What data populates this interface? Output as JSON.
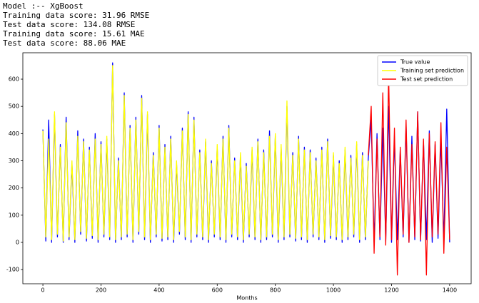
{
  "output_lines": [
    "Model :-- XgBoost",
    "Training data score: 31.96 RMSE",
    "Test data score: 134.08 RMSE",
    "Training data score: 15.61 MAE",
    "Test data score: 88.06 MAE"
  ],
  "chart_data": {
    "type": "line",
    "x_label": "Months",
    "legend": "upper right",
    "xlim": [
      -69,
      1474
    ],
    "ylim": [
      -152,
      697
    ],
    "xticks": [
      0,
      200,
      400,
      600,
      800,
      1000,
      1200,
      1400
    ],
    "yticks": [
      -100,
      0,
      100,
      200,
      300,
      400,
      500,
      600
    ],
    "series": [
      {
        "name": "True value",
        "color": "#0000ff",
        "x": [
          0,
          10,
          20,
          30,
          40,
          50,
          60,
          70,
          80,
          90,
          100,
          110,
          120,
          130,
          140,
          150,
          160,
          170,
          180,
          190,
          200,
          210,
          220,
          230,
          240,
          250,
          260,
          270,
          280,
          290,
          300,
          310,
          320,
          330,
          340,
          350,
          360,
          370,
          380,
          390,
          400,
          410,
          420,
          430,
          440,
          450,
          460,
          470,
          480,
          490,
          500,
          510,
          520,
          530,
          540,
          550,
          560,
          570,
          580,
          590,
          600,
          610,
          620,
          630,
          640,
          650,
          660,
          670,
          680,
          690,
          700,
          710,
          720,
          730,
          740,
          750,
          760,
          770,
          780,
          790,
          800,
          810,
          820,
          830,
          840,
          850,
          860,
          870,
          880,
          890,
          900,
          910,
          920,
          930,
          940,
          950,
          960,
          970,
          980,
          990,
          1000,
          1010,
          1020,
          1030,
          1040,
          1050,
          1060,
          1070,
          1080,
          1090,
          1100,
          1110,
          1120,
          1130,
          1140,
          1150,
          1160,
          1170,
          1180,
          1190,
          1200,
          1210,
          1220,
          1230,
          1240,
          1250,
          1260,
          1270,
          1280,
          1290,
          1300,
          1310,
          1320,
          1330,
          1340,
          1350,
          1360,
          1370,
          1380,
          1390,
          1400
        ],
        "values": [
          415,
          5,
          450,
          0,
          470,
          20,
          360,
          0,
          460,
          10,
          290,
          0,
          410,
          30,
          380,
          5,
          350,
          15,
          400,
          0,
          370,
          20,
          380,
          10,
          660,
          0,
          310,
          10,
          550,
          20,
          430,
          0,
          460,
          30,
          540,
          10,
          470,
          0,
          330,
          20,
          430,
          5,
          360,
          10,
          390,
          0,
          290,
          30,
          420,
          10,
          480,
          0,
          460,
          20,
          340,
          10,
          370,
          0,
          300,
          20,
          350,
          10,
          390,
          0,
          430,
          20,
          310,
          10,
          320,
          0,
          290,
          20,
          340,
          10,
          380,
          0,
          340,
          10,
          410,
          20,
          390,
          0,
          350,
          10,
          500,
          20,
          330,
          5,
          390,
          10,
          350,
          0,
          340,
          20,
          310,
          10,
          350,
          0,
          380,
          15,
          320,
          10,
          300,
          0,
          340,
          10,
          320,
          20,
          360,
          0,
          330,
          10,
          310,
          450,
          0,
          400,
          10,
          420,
          5,
          500,
          0,
          380,
          10,
          340,
          20,
          430,
          0,
          390,
          10,
          480,
          5,
          370,
          10,
          410,
          0,
          360,
          15,
          380,
          5,
          490,
          0
        ]
      },
      {
        "name": "Training set prediction",
        "color": "#ffff00",
        "x": [
          0,
          10,
          20,
          30,
          40,
          50,
          60,
          70,
          80,
          90,
          100,
          110,
          120,
          130,
          140,
          150,
          160,
          170,
          180,
          190,
          200,
          210,
          220,
          230,
          240,
          250,
          260,
          270,
          280,
          290,
          300,
          310,
          320,
          330,
          340,
          350,
          360,
          370,
          380,
          390,
          400,
          410,
          420,
          430,
          440,
          450,
          460,
          470,
          480,
          490,
          500,
          510,
          520,
          530,
          540,
          550,
          560,
          570,
          580,
          590,
          600,
          610,
          620,
          630,
          640,
          650,
          660,
          670,
          680,
          690,
          700,
          710,
          720,
          730,
          740,
          750,
          760,
          770,
          780,
          790,
          800,
          810,
          820,
          830,
          840,
          850,
          860,
          870,
          880,
          890,
          900,
          910,
          920,
          930,
          940,
          950,
          960,
          970,
          980,
          990,
          1000,
          1010,
          1020,
          1030,
          1040,
          1050,
          1060,
          1070,
          1080,
          1090,
          1100,
          1110,
          1120
        ],
        "values": [
          410,
          20,
          380,
          10,
          480,
          30,
          350,
          5,
          440,
          20,
          300,
          10,
          390,
          40,
          370,
          15,
          340,
          25,
          380,
          10,
          360,
          30,
          390,
          20,
          650,
          10,
          300,
          20,
          540,
          30,
          420,
          10,
          450,
          40,
          530,
          20,
          480,
          10,
          320,
          30,
          420,
          15,
          350,
          20,
          380,
          10,
          300,
          40,
          410,
          20,
          470,
          10,
          450,
          30,
          330,
          20,
          380,
          10,
          290,
          30,
          360,
          20,
          380,
          10,
          420,
          30,
          300,
          20,
          330,
          10,
          280,
          30,
          350,
          20,
          370,
          10,
          330,
          20,
          390,
          30,
          400,
          10,
          360,
          20,
          520,
          30,
          320,
          15,
          380,
          20,
          340,
          10,
          330,
          30,
          300,
          20,
          340,
          10,
          370,
          25,
          330,
          20,
          290,
          10,
          350,
          20,
          310,
          30,
          370,
          10,
          320,
          20,
          300
        ]
      },
      {
        "name": "Test set prediction",
        "color": "#ff0000",
        "x": [
          1120,
          1130,
          1140,
          1150,
          1160,
          1170,
          1180,
          1190,
          1200,
          1210,
          1220,
          1230,
          1240,
          1250,
          1260,
          1270,
          1280,
          1290,
          1300,
          1310,
          1320,
          1330,
          1340,
          1350,
          1360,
          1370,
          1380,
          1390,
          1400
        ],
        "values": [
          320,
          500,
          -40,
          380,
          20,
          550,
          -10,
          620,
          10,
          420,
          -120,
          350,
          30,
          450,
          0,
          360,
          20,
          480,
          10,
          380,
          -120,
          400,
          20,
          370,
          30,
          440,
          -40,
          350,
          10
        ]
      }
    ]
  }
}
